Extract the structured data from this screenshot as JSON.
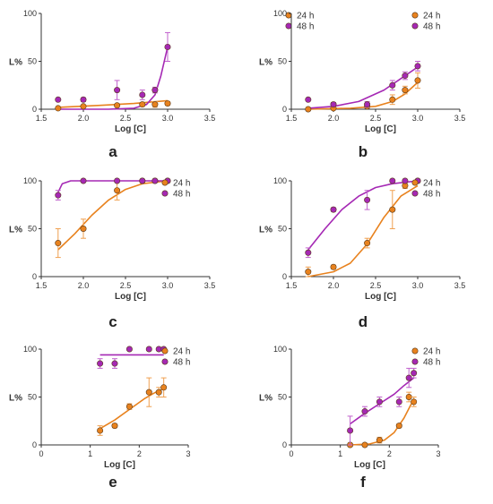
{
  "figure": {
    "colors": {
      "24h": "#e8821e",
      "48h": "#a528b4",
      "axis": "#333333",
      "errbar_24h": "#f0a050",
      "errbar_48h": "#c060cc"
    },
    "legend": [
      "24 h",
      "48 h"
    ]
  },
  "chart_data": [
    {
      "panel": "a",
      "type": "scatter",
      "xlabel": "Log [C]",
      "ylabel": "L%",
      "xlim": [
        1.5,
        3.5
      ],
      "ylim": [
        0,
        100
      ],
      "xticks": [
        "1.5",
        "2.0",
        "2.5",
        "3.0",
        "3.5"
      ],
      "yticks": [
        "0",
        "50",
        "100"
      ],
      "legend": [
        "24 h",
        "48 h"
      ],
      "series": [
        {
          "name": "24 h",
          "x": [
            1.7,
            2.0,
            2.4,
            2.7,
            2.85,
            3.0
          ],
          "y": [
            1,
            3,
            4,
            5,
            5,
            6
          ],
          "err": [
            1,
            1,
            1,
            2,
            3,
            2
          ],
          "fit": [
            [
              1.7,
              2
            ],
            [
              2.2,
              4
            ],
            [
              2.6,
              6
            ],
            [
              3.0,
              9
            ]
          ]
        },
        {
          "name": "48 h",
          "x": [
            1.7,
            2.0,
            2.4,
            2.7,
            2.85,
            3.0
          ],
          "y": [
            10,
            10,
            20,
            15,
            20,
            65
          ],
          "err": [
            1,
            2,
            10,
            5,
            3,
            15
          ],
          "fit": [
            [
              1.7,
              0
            ],
            [
              2.3,
              0
            ],
            [
              2.6,
              1
            ],
            [
              2.75,
              5
            ],
            [
              2.85,
              15
            ],
            [
              2.92,
              35
            ],
            [
              3.0,
              65
            ]
          ]
        }
      ]
    },
    {
      "panel": "b",
      "type": "scatter",
      "xlabel": "Log [C]",
      "ylabel": "L%",
      "xlim": [
        1.5,
        3.5
      ],
      "ylim": [
        0,
        100
      ],
      "xticks": [
        "1.5",
        "2.0",
        "2.5",
        "3.0",
        "3.5"
      ],
      "yticks": [
        "0",
        "50",
        "100"
      ],
      "legend": [
        "24 h",
        "48 h"
      ],
      "series": [
        {
          "name": "24 h",
          "x": [
            1.7,
            2.0,
            2.4,
            2.7,
            2.85,
            3.0
          ],
          "y": [
            0,
            1,
            3,
            10,
            20,
            30
          ],
          "err": [
            1,
            1,
            2,
            5,
            4,
            8
          ],
          "fit": [
            [
              1.7,
              0
            ],
            [
              2.2,
              1
            ],
            [
              2.5,
              3
            ],
            [
              2.7,
              8
            ],
            [
              2.85,
              16
            ],
            [
              3.0,
              28
            ]
          ]
        },
        {
          "name": "48 h",
          "x": [
            1.7,
            2.0,
            2.4,
            2.7,
            2.85,
            3.0
          ],
          "y": [
            10,
            5,
            5,
            25,
            35,
            45
          ],
          "err": [
            1,
            2,
            3,
            5,
            4,
            5
          ],
          "fit": [
            [
              1.7,
              1
            ],
            [
              2.0,
              3
            ],
            [
              2.3,
              8
            ],
            [
              2.6,
              20
            ],
            [
              2.8,
              32
            ],
            [
              3.0,
              44
            ]
          ]
        }
      ]
    },
    {
      "panel": "c",
      "type": "scatter",
      "xlabel": "Log [C]",
      "ylabel": "L%",
      "xlim": [
        1.5,
        3.5
      ],
      "ylim": [
        0,
        100
      ],
      "xticks": [
        "1.5",
        "2.0",
        "2.5",
        "3.0",
        "3.5"
      ],
      "yticks": [
        "0",
        "50",
        "100"
      ],
      "legend": [
        "24 h",
        "48 h"
      ],
      "series": [
        {
          "name": "24 h",
          "x": [
            1.7,
            2.0,
            2.4,
            2.7,
            2.85,
            3.0
          ],
          "y": [
            35,
            50,
            90,
            100,
            100,
            100
          ],
          "err": [
            15,
            10,
            10,
            1,
            1,
            1
          ],
          "fit": [
            [
              1.7,
              28
            ],
            [
              1.9,
              45
            ],
            [
              2.1,
              64
            ],
            [
              2.3,
              80
            ],
            [
              2.5,
              91
            ],
            [
              2.7,
              97
            ],
            [
              3.0,
              100
            ]
          ]
        },
        {
          "name": "48 h",
          "x": [
            1.7,
            2.0,
            2.4,
            2.7,
            2.85,
            3.0
          ],
          "y": [
            85,
            100,
            100,
            100,
            100,
            100
          ],
          "err": [
            5,
            1,
            1,
            1,
            1,
            1
          ],
          "fit": [
            [
              1.7,
              88
            ],
            [
              1.75,
              97
            ],
            [
              1.85,
              100
            ],
            [
              3.0,
              100
            ]
          ]
        }
      ]
    },
    {
      "panel": "d",
      "type": "scatter",
      "xlabel": "Log [C]",
      "ylabel": "L%",
      "xlim": [
        1.5,
        3.5
      ],
      "ylim": [
        0,
        100
      ],
      "xticks": [
        "1.5",
        "2.0",
        "2.5",
        "3.0",
        "3.5"
      ],
      "yticks": [
        "0",
        "50",
        "100"
      ],
      "legend": [
        "24 h",
        "48 h"
      ],
      "series": [
        {
          "name": "24 h",
          "x": [
            1.7,
            2.0,
            2.4,
            2.7,
            2.85,
            3.0
          ],
          "y": [
            5,
            10,
            35,
            70,
            95,
            100
          ],
          "err": [
            5,
            2,
            5,
            20,
            3,
            1
          ],
          "fit": [
            [
              1.7,
              0
            ],
            [
              2.0,
              5
            ],
            [
              2.2,
              14
            ],
            [
              2.4,
              34
            ],
            [
              2.6,
              62
            ],
            [
              2.8,
              84
            ],
            [
              3.0,
              95
            ]
          ]
        },
        {
          "name": "48 h",
          "x": [
            1.7,
            2.0,
            2.4,
            2.7,
            2.85,
            3.0
          ],
          "y": [
            25,
            70,
            80,
            100,
            100,
            100
          ],
          "err": [
            5,
            2,
            10,
            1,
            1,
            1
          ],
          "fit": [
            [
              1.7,
              28
            ],
            [
              1.9,
              50
            ],
            [
              2.1,
              70
            ],
            [
              2.3,
              84
            ],
            [
              2.5,
              93
            ],
            [
              2.7,
              97
            ],
            [
              3.0,
              100
            ]
          ]
        }
      ]
    },
    {
      "panel": "e",
      "type": "scatter",
      "xlabel": "Log [C]",
      "ylabel": "L%",
      "xlim": [
        0,
        3
      ],
      "ylim": [
        0,
        100
      ],
      "xticks": [
        "0",
        "1",
        "2",
        "3"
      ],
      "yticks": [
        "0",
        "50",
        "100"
      ],
      "legend": [
        "24 h",
        "48 h"
      ],
      "series": [
        {
          "name": "24 h",
          "x": [
            1.2,
            1.5,
            1.8,
            2.2,
            2.4,
            2.5
          ],
          "y": [
            15,
            20,
            40,
            55,
            55,
            60
          ],
          "err": [
            5,
            2,
            3,
            15,
            5,
            10
          ],
          "fit": [
            [
              1.2,
              17
            ],
            [
              1.5,
              26
            ],
            [
              1.8,
              37
            ],
            [
              2.1,
              48
            ],
            [
              2.3,
              54
            ],
            [
              2.5,
              59
            ]
          ]
        },
        {
          "name": "48 h",
          "x": [
            1.2,
            1.5,
            1.8,
            2.2,
            2.4,
            2.5
          ],
          "y": [
            85,
            85,
            100,
            100,
            100,
            100
          ],
          "err": [
            5,
            5,
            1,
            1,
            1,
            1
          ],
          "fit": [
            [
              1.2,
              94
            ],
            [
              2.5,
              94
            ]
          ]
        }
      ]
    },
    {
      "panel": "f",
      "type": "scatter",
      "xlabel": "Log [C]",
      "ylabel": "L%",
      "xlim": [
        0,
        3
      ],
      "ylim": [
        0,
        100
      ],
      "xticks": [
        "0",
        "1",
        "2",
        "3"
      ],
      "yticks": [
        "0",
        "50",
        "100"
      ],
      "legend": [
        "24 h",
        "48 h"
      ],
      "series": [
        {
          "name": "24 h",
          "x": [
            1.2,
            1.5,
            1.8,
            2.2,
            2.4,
            2.5
          ],
          "y": [
            0,
            0,
            5,
            20,
            50,
            45
          ],
          "err": [
            1,
            1,
            3,
            2,
            5,
            5
          ],
          "fit": [
            [
              1.2,
              0
            ],
            [
              1.6,
              1
            ],
            [
              1.9,
              5
            ],
            [
              2.1,
              13
            ],
            [
              2.3,
              28
            ],
            [
              2.5,
              48
            ]
          ]
        },
        {
          "name": "48 h",
          "x": [
            1.2,
            1.5,
            1.8,
            2.2,
            2.4,
            2.5
          ],
          "y": [
            15,
            35,
            45,
            45,
            70,
            75
          ],
          "err": [
            15,
            5,
            5,
            5,
            10,
            5
          ],
          "fit": [
            [
              1.2,
              22
            ],
            [
              1.5,
              33
            ],
            [
              1.8,
              43
            ],
            [
              2.1,
              53
            ],
            [
              2.3,
              62
            ],
            [
              2.5,
              70
            ]
          ]
        }
      ]
    }
  ]
}
